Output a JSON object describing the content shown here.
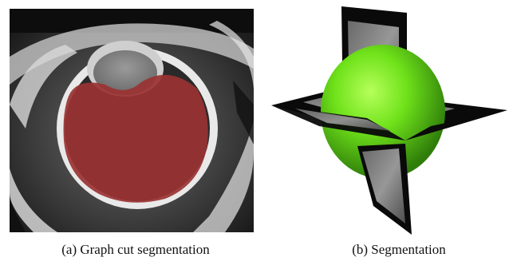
{
  "figure": {
    "panels": [
      {
        "id": "a",
        "caption": "(a) Graph cut segmentation",
        "content": "MRI slice of eye with red segmentation overlay"
      },
      {
        "id": "b",
        "caption": "(b) Segmentation",
        "content": "3D green sphere intersected by orthogonal grayscale planes"
      }
    ],
    "colors": {
      "overlay_red": "#9a3232",
      "sphere_green": "#6fe21a",
      "plane_dark": "#0a0a0a"
    }
  }
}
